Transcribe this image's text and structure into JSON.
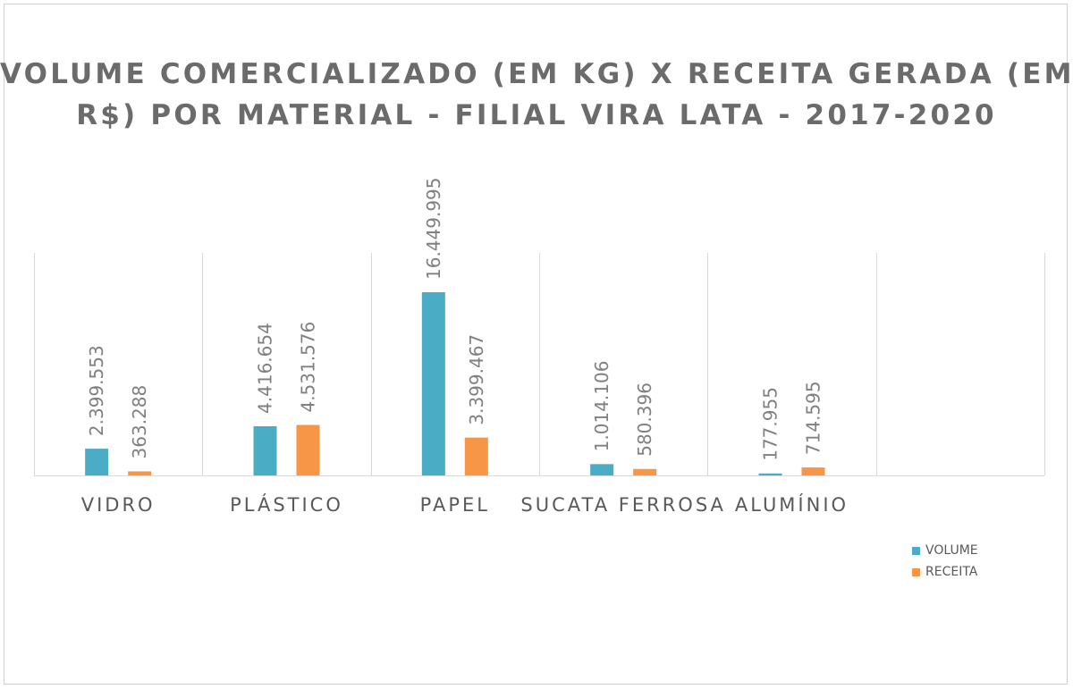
{
  "chart_data": {
    "type": "bar",
    "title_lines": [
      "VOLUME COMERCIALIZADO (EM KG) X RECEITA GERADA (EM",
      "R$) POR MATERIAL  - FILIAL VIRA LATA - 2017-2020"
    ],
    "categories": [
      "VIDRO",
      "PLÁSTICO",
      "PAPEL",
      "SUCATA FERROSA",
      "ALUMÍNIO",
      ""
    ],
    "series": [
      {
        "name": "VOLUME",
        "color": "#4BACC6",
        "values": [
          2399553,
          4416654,
          16449995,
          1014106,
          177955,
          null
        ],
        "labels": [
          "2.399.553",
          "4.416.654",
          "16.449.995",
          "1.014.106",
          "177.955",
          ""
        ]
      },
      {
        "name": "RECEITA",
        "color": "#F79646",
        "values": [
          363288,
          4531576,
          3399467,
          580396,
          714595,
          null
        ],
        "labels": [
          "363.288",
          "4.531.576",
          "3.399.467",
          "580.396",
          "714.595",
          ""
        ]
      }
    ],
    "ylim": [
      0,
      32000000
    ],
    "grid": "vertical category separators",
    "legend": "right"
  }
}
